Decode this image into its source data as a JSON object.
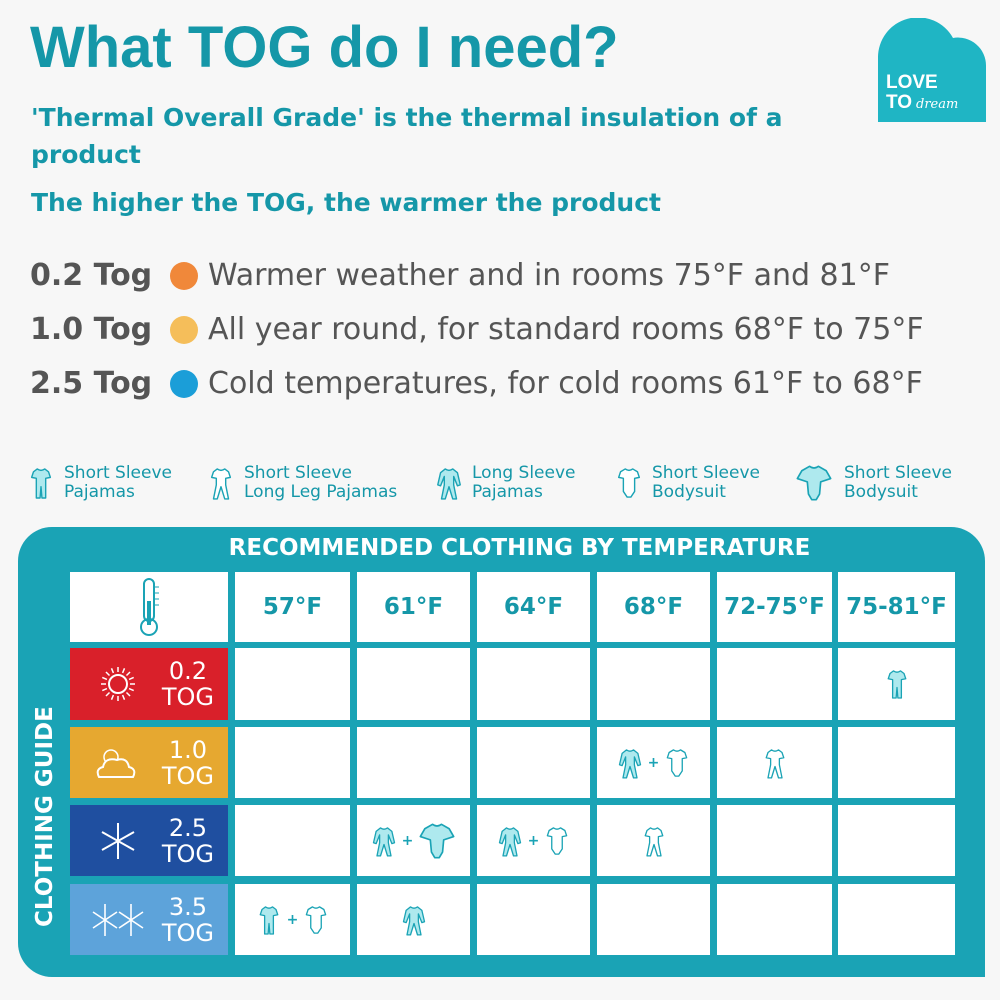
{
  "header": {
    "title": "What TOG do I need?",
    "subtitle1": "'Thermal Overall Grade' is the thermal insulation of a product",
    "subtitle1_line1": "'Thermal Overall Grade' is the thermal insulation of a",
    "subtitle1_line2": "product",
    "subtitle2": "The higher the TOG, the warmer the product"
  },
  "logo": {
    "text": "LOVE TO dream",
    "color": "#1fb5c4"
  },
  "tog_guide": [
    {
      "tog": "0.2 Tog",
      "color": "#f0883a",
      "text": "Warmer weather and in rooms 75°F and 81°F"
    },
    {
      "tog": "1.0 Tog",
      "color": "#f5be5a",
      "text": "All year round, for standard rooms 68°F to 75°F"
    },
    {
      "tog": "2.5 Tog",
      "color": "#1b9ed8",
      "text": "Cold temperatures, for cold rooms 61°F to 68°F"
    }
  ],
  "legend": [
    {
      "icon": "ss-pajamas",
      "line1": "Short Sleeve",
      "line2": "Pajamas"
    },
    {
      "icon": "ss-longleg",
      "line1": "Short Sleeve",
      "line2": "Long Leg Pajamas"
    },
    {
      "icon": "ls-pajamas",
      "line1": "Long Sleeve",
      "line2": "Pajamas"
    },
    {
      "icon": "ss-bodysuit",
      "line1": "Short Sleeve",
      "line2": "Bodysuit"
    },
    {
      "icon": "ss-bodysuit-wide",
      "line1": "Short Sleeve",
      "line2": "Bodysuit"
    }
  ],
  "table": {
    "title": "RECOMMENDED CLOTHING BY TEMPERATURE",
    "side_label": "CLOTHING GUIDE",
    "accent": "#1aa3b5",
    "columns": [
      "57°F",
      "61°F",
      "64°F",
      "68°F",
      "72-75°F",
      "75-81°F"
    ],
    "rows": [
      {
        "tog": "0.2",
        "unit": "TOG",
        "icon": "sun-icon",
        "color": "#d9202a",
        "cells": [
          [],
          [],
          [],
          [],
          [],
          [
            "ss-pajamas"
          ]
        ]
      },
      {
        "tog": "1.0",
        "unit": "TOG",
        "icon": "sun-cloud-icon",
        "color": "#e6a830",
        "cells": [
          [],
          [],
          [],
          [
            "ls-pajamas",
            "ss-bodysuit"
          ],
          [
            "ss-longleg"
          ],
          []
        ]
      },
      {
        "tog": "2.5",
        "unit": "TOG",
        "icon": "snowflake-icon",
        "color": "#1f4fa0",
        "cells": [
          [],
          [
            "ls-pajamas",
            "ss-bodysuit-wide"
          ],
          [
            "ls-pajamas",
            "ss-bodysuit"
          ],
          [
            "ss-longleg"
          ],
          [],
          []
        ]
      },
      {
        "tog": "3.5",
        "unit": "TOG",
        "icon": "double-snowflake-icon",
        "color": "#5da3da",
        "cells": [
          [
            "ss-pajamas",
            "ss-bodysuit"
          ],
          [
            "ls-pajamas"
          ],
          [],
          [],
          [],
          []
        ]
      }
    ]
  }
}
